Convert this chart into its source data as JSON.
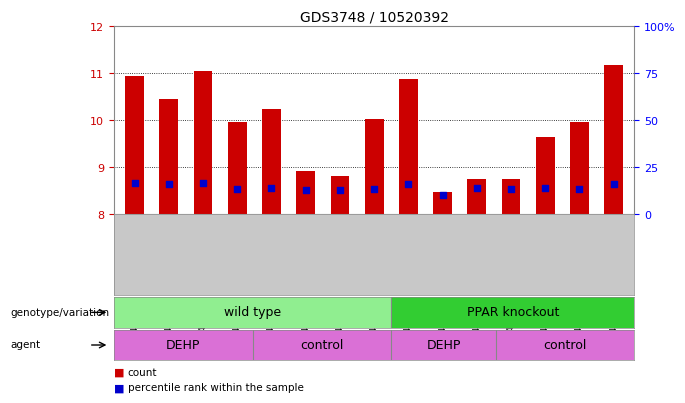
{
  "title": "GDS3748 / 10520392",
  "samples": [
    "GSM461980",
    "GSM461981",
    "GSM461982",
    "GSM461983",
    "GSM461976",
    "GSM461977",
    "GSM461978",
    "GSM461979",
    "GSM461988",
    "GSM461989",
    "GSM461990",
    "GSM461984",
    "GSM461985",
    "GSM461986",
    "GSM461987"
  ],
  "bar_values": [
    10.95,
    10.45,
    11.05,
    9.97,
    10.25,
    8.92,
    8.82,
    10.02,
    10.87,
    8.47,
    8.75,
    8.75,
    9.65,
    9.97,
    11.18
  ],
  "blue_values": [
    8.67,
    8.65,
    8.67,
    8.55,
    8.57,
    8.53,
    8.52,
    8.55,
    8.65,
    8.42,
    8.57,
    8.55,
    8.57,
    8.55,
    8.65
  ],
  "ylim": [
    8.0,
    12.0
  ],
  "yticks_left": [
    8,
    9,
    10,
    11,
    12
  ],
  "yticks_right": [
    0,
    25,
    50,
    75,
    100
  ],
  "bar_color": "#cc0000",
  "blue_color": "#0000cc",
  "genotype_labels": [
    "wild type",
    "PPAR knockout"
  ],
  "genotype_color_light": "#90ee90",
  "genotype_color_dark": "#32cd32",
  "agent_labels": [
    "DEHP",
    "control",
    "DEHP",
    "control"
  ],
  "agent_color": "#da70d6",
  "legend_count_color": "#cc0000",
  "legend_pct_color": "#0000cc",
  "tick_bg_color": "#c8c8c8"
}
